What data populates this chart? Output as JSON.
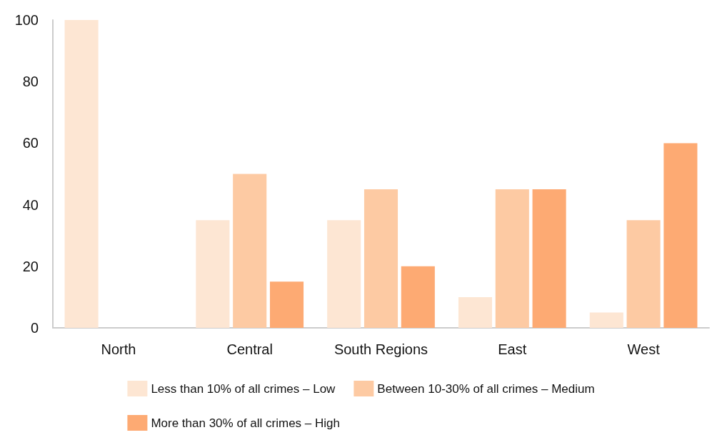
{
  "chart_data": {
    "type": "bar",
    "categories": [
      "North",
      "Central",
      "South Regions",
      "East",
      "West"
    ],
    "series": [
      {
        "name": "Less than 10% of all crimes – Low",
        "color": "#fde6d3",
        "values": [
          100,
          35,
          35,
          10,
          5
        ]
      },
      {
        "name": "Between 10-30% of all crimes – Medium",
        "color": "#fdcaa3",
        "values": [
          null,
          50,
          45,
          45,
          35
        ]
      },
      {
        "name": "More than 30% of all crimes – High",
        "color": "#fdaa73",
        "values": [
          null,
          15,
          20,
          45,
          60
        ]
      }
    ],
    "ylim": [
      0,
      100
    ],
    "yticks": [
      0,
      20,
      40,
      60,
      80,
      100
    ],
    "grid": false,
    "legend": "bottom"
  }
}
